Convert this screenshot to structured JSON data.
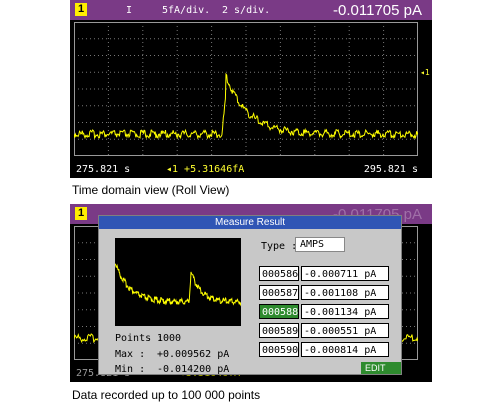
{
  "top_screen": {
    "channel": "1",
    "mode": "I",
    "scale": "5fA/div.",
    "time_scale": "2 s/div.",
    "reading": "-0.011705 pA",
    "marker": "◂1",
    "x_start": "275.821 s",
    "cursor": "◂1  +5.31646fA",
    "x_end": "295.821 s"
  },
  "top_caption": "Time domain view (Roll View)",
  "bottom_screen": {
    "channel": "1",
    "reading": "-0.011705 pA",
    "x_start": "275.821 s",
    "cursor": "+5.31646fA",
    "dialog": {
      "title": "Measure Result",
      "type_label": "Type :",
      "type_value": "AMPS",
      "points_label": "Points :",
      "points_value": "1000",
      "max_label": "Max :",
      "max_value": "+0.009562 pA",
      "min_label": "Min :",
      "min_value": "-0.014200 pA",
      "rows": [
        [
          "000586",
          "-0.000711 pA"
        ],
        [
          "000587",
          "-0.001108 pA"
        ],
        [
          "000588",
          "-0.001134 pA"
        ],
        [
          "000589",
          "-0.000551 pA"
        ],
        [
          "000590",
          "-0.000814 pA"
        ]
      ],
      "button": "EDIT"
    }
  },
  "bottom_caption": "Data recorded up to 100 000 points"
}
